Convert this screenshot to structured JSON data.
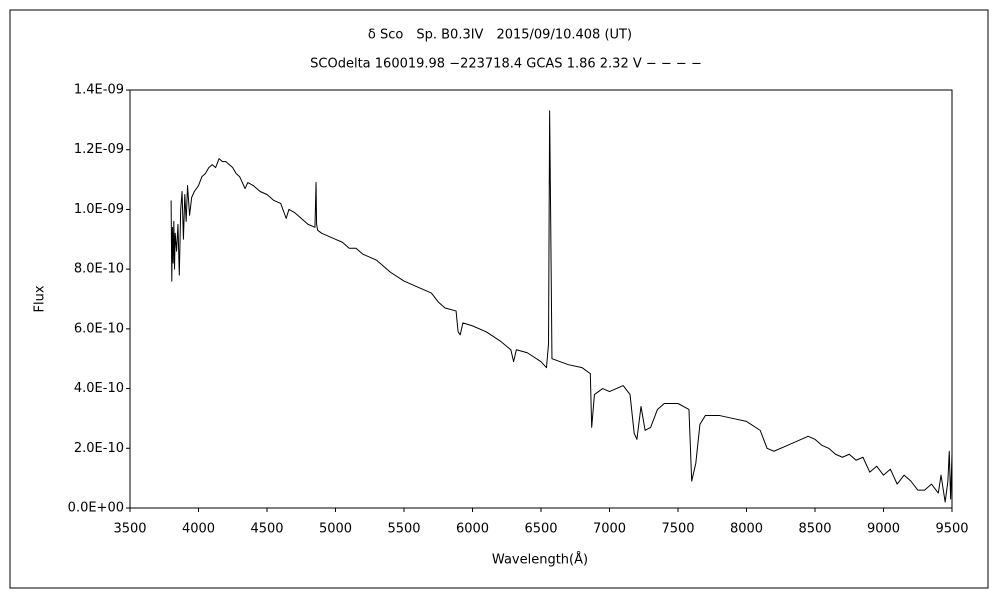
{
  "chart_data": {
    "type": "line",
    "title": "δ Sco　Sp. B0.3IV　2015/09/10.408 (UT)",
    "subtitle": "SCOdelta 160019.98 −223718.4 GCAS 1.86 2.32 V − − − −",
    "x_label": "Wavelength(Å)",
    "y_label": "Flux",
    "color": "#000000",
    "xlim": [
      3500,
      9500
    ],
    "xticks": [
      3500,
      4000,
      4500,
      5000,
      5500,
      6000,
      6500,
      7000,
      7500,
      8000,
      8500,
      9000,
      9500
    ],
    "ylim": [
      0,
      1.4e-09
    ],
    "yticks": [
      {
        "value": 0,
        "label": "0.0E+00"
      },
      {
        "value": 2e-10,
        "label": "2.0E-10"
      },
      {
        "value": 4e-10,
        "label": "4.0E-10"
      },
      {
        "value": 6e-10,
        "label": "6.0E-10"
      },
      {
        "value": 8e-10,
        "label": "8.0E-10"
      },
      {
        "value": 1e-09,
        "label": "1.0E-09"
      },
      {
        "value": 1.2e-09,
        "label": "1.2E-09"
      },
      {
        "value": 1.4e-09,
        "label": "1.4E-09"
      }
    ],
    "grid": false,
    "x": [
      3800,
      3805,
      3810,
      3815,
      3820,
      3825,
      3830,
      3840,
      3850,
      3860,
      3870,
      3880,
      3890,
      3900,
      3910,
      3920,
      3935,
      3950,
      3970,
      4000,
      4025,
      4050,
      4075,
      4100,
      4125,
      4150,
      4175,
      4200,
      4225,
      4250,
      4275,
      4300,
      4340,
      4360,
      4400,
      4450,
      4500,
      4550,
      4600,
      4640,
      4660,
      4700,
      4750,
      4800,
      4850,
      4858,
      4862,
      4870,
      4900,
      4950,
      5000,
      5050,
      5100,
      5150,
      5200,
      5300,
      5400,
      5500,
      5600,
      5700,
      5750,
      5800,
      5880,
      5895,
      5910,
      5930,
      6000,
      6100,
      6200,
      6280,
      6300,
      6320,
      6400,
      6500,
      6540,
      6555,
      6563,
      6570,
      6580,
      6700,
      6800,
      6860,
      6870,
      6890,
      6950,
      7000,
      7100,
      7150,
      7180,
      7200,
      7230,
      7260,
      7300,
      7350,
      7400,
      7500,
      7580,
      7600,
      7630,
      7660,
      7700,
      7800,
      7900,
      8000,
      8100,
      8150,
      8200,
      8300,
      8400,
      8450,
      8500,
      8550,
      8600,
      8650,
      8700,
      8750,
      8800,
      8850,
      8900,
      8950,
      9000,
      9050,
      9100,
      9150,
      9200,
      9250,
      9300,
      9350,
      9400,
      9420,
      9450,
      9470,
      9480,
      9490,
      9500
    ],
    "values": [
      1.03e-09,
      7.6e-10,
      9.4e-10,
      8.2e-10,
      9.6e-10,
      8e-10,
      9.2e-10,
      8.6e-10,
      9.5e-10,
      7.8e-10,
      1e-09,
      1.06e-09,
      9e-10,
      1.05e-09,
      9.6e-10,
      1.08e-09,
      9.8e-10,
      1.04e-09,
      1.06e-09,
      1.08e-09,
      1.11e-09,
      1.12e-09,
      1.14e-09,
      1.15e-09,
      1.14e-09,
      1.17e-09,
      1.16e-09,
      1.16e-09,
      1.15e-09,
      1.14e-09,
      1.12e-09,
      1.11e-09,
      1.07e-09,
      1.09e-09,
      1.08e-09,
      1.06e-09,
      1.05e-09,
      1.03e-09,
      1.02e-09,
      9.7e-10,
      1e-09,
      9.9e-10,
      9.7e-10,
      9.5e-10,
      9.4e-10,
      1.09e-09,
      9.5e-10,
      9.3e-10,
      9.2e-10,
      9.1e-10,
      9e-10,
      8.9e-10,
      8.7e-10,
      8.7e-10,
      8.5e-10,
      8.3e-10,
      7.9e-10,
      7.6e-10,
      7.4e-10,
      7.2e-10,
      6.9e-10,
      6.7e-10,
      6.6e-10,
      5.9e-10,
      5.8e-10,
      6.2e-10,
      6.1e-10,
      5.9e-10,
      5.6e-10,
      5.3e-10,
      4.9e-10,
      5.3e-10,
      5.2e-10,
      4.9e-10,
      4.7e-10,
      5.5e-10,
      1.33e-09,
      1e-09,
      5e-10,
      4.8e-10,
      4.7e-10,
      4.5e-10,
      2.7e-10,
      3.8e-10,
      4e-10,
      3.9e-10,
      4.1e-10,
      3.8e-10,
      2.5e-10,
      2.3e-10,
      3.4e-10,
      2.6e-10,
      2.7e-10,
      3.3e-10,
      3.5e-10,
      3.5e-10,
      3.3e-10,
      9e-11,
      1.5e-10,
      2.8e-10,
      3.1e-10,
      3.1e-10,
      3e-10,
      2.9e-10,
      2.6e-10,
      2e-10,
      1.9e-10,
      2.1e-10,
      2.3e-10,
      2.4e-10,
      2.3e-10,
      2.1e-10,
      2e-10,
      1.8e-10,
      1.7e-10,
      1.8e-10,
      1.6e-10,
      1.7e-10,
      1.2e-10,
      1.4e-10,
      1.1e-10,
      1.3e-10,
      8e-11,
      1.1e-10,
      9e-11,
      6e-11,
      6e-11,
      8e-11,
      5e-11,
      1.1e-10,
      2e-11,
      9e-11,
      1.9e-10,
      3e-11,
      1.8e-10
    ]
  }
}
